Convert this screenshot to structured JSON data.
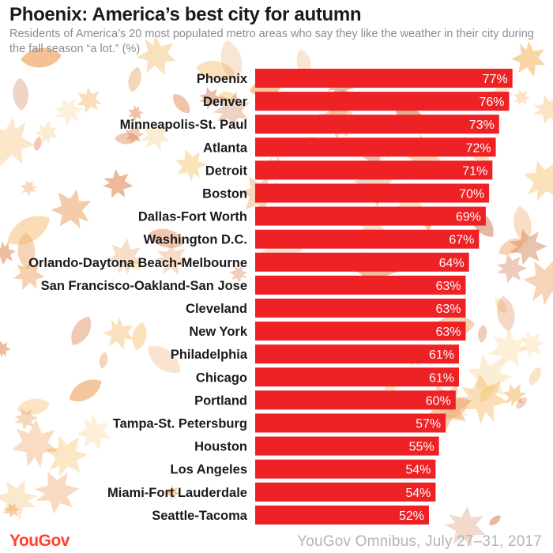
{
  "header": {
    "title": "Phoenix: America’s best city for autumn",
    "subtitle": "Residents of America’s 20 most populated metro areas who say they like the weather in their city during the fall season “a lot.” (%)"
  },
  "footer": {
    "logo": "YouGov",
    "source": "YouGov Omnibus, July 27–31, 2017"
  },
  "colors": {
    "bar": "#ee2124",
    "label_text": "#ffffff",
    "category_text": "#1a1a1a",
    "logo": "#ff412c",
    "leaf_palette": [
      "#f3b35b",
      "#e98d3c",
      "#d96a2d",
      "#f7c97a",
      "#eaa060",
      "#c86b38"
    ]
  },
  "background": {
    "decoration": "falling autumn leaves"
  },
  "chart_data": {
    "type": "bar",
    "orientation": "horizontal",
    "categories": [
      "Phoenix",
      "Denver",
      "Minneapolis-St. Paul",
      "Atlanta",
      "Detroit",
      "Boston",
      "Dallas-Fort Worth",
      "Washington D.C.",
      "Orlando-Daytona Beach-Melbourne",
      "San Francisco-Oakland-San Jose",
      "Cleveland",
      "New York",
      "Philadelphia",
      "Chicago",
      "Portland",
      "Tampa-St. Petersburg",
      "Houston",
      "Los Angeles",
      "Miami-Fort Lauderdale",
      "Seattle-Tacoma"
    ],
    "values": [
      77,
      76,
      73,
      72,
      71,
      70,
      69,
      67,
      64,
      63,
      63,
      63,
      61,
      61,
      60,
      57,
      55,
      54,
      54,
      52
    ],
    "value_suffix": "%",
    "xlim": [
      0,
      100
    ],
    "grid": false,
    "legend": "none"
  }
}
